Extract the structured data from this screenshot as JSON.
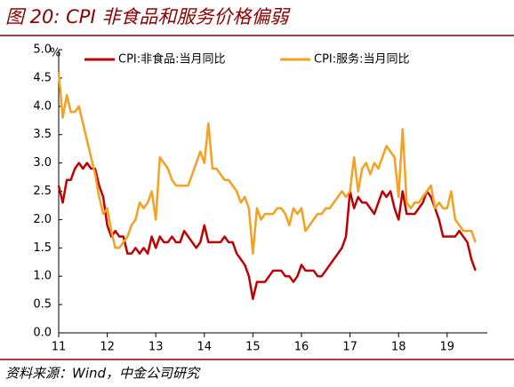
{
  "chart_data": {
    "type": "line",
    "title": "图 20: CPI 非食品和服务价格偏弱",
    "source": "资料来源：Wind，中金公司研究",
    "y_unit": "%",
    "categories": [
      "11",
      null,
      null,
      null,
      null,
      null,
      null,
      null,
      null,
      null,
      null,
      null,
      "12",
      null,
      null,
      null,
      null,
      null,
      null,
      null,
      null,
      null,
      null,
      null,
      "13",
      null,
      null,
      null,
      null,
      null,
      null,
      null,
      null,
      null,
      null,
      null,
      "14",
      null,
      null,
      null,
      null,
      null,
      null,
      null,
      null,
      null,
      null,
      null,
      "15",
      null,
      null,
      null,
      null,
      null,
      null,
      null,
      null,
      null,
      null,
      null,
      "16",
      null,
      null,
      null,
      null,
      null,
      null,
      null,
      null,
      null,
      null,
      null,
      "17",
      null,
      null,
      null,
      null,
      null,
      null,
      null,
      null,
      null,
      null,
      null,
      "18",
      null,
      null,
      null,
      null,
      null,
      null,
      null,
      null,
      null,
      null,
      null,
      "19",
      null,
      null,
      null,
      null,
      null,
      null,
      null
    ],
    "series": [
      {
        "name": "CPI:非食品:当月同比",
        "color": "#c00000",
        "values": [
          2.6,
          2.3,
          2.7,
          2.7,
          2.9,
          3.0,
          2.9,
          3.0,
          2.9,
          2.9,
          2.6,
          2.4,
          1.9,
          1.7,
          1.8,
          1.7,
          1.7,
          1.4,
          1.4,
          1.5,
          1.4,
          1.5,
          1.4,
          1.7,
          1.5,
          1.7,
          1.6,
          1.6,
          1.7,
          1.6,
          1.6,
          1.8,
          1.7,
          1.6,
          1.5,
          1.6,
          1.9,
          1.6,
          1.6,
          1.6,
          1.6,
          1.7,
          1.6,
          1.6,
          1.4,
          1.3,
          1.2,
          1.0,
          0.6,
          0.9,
          0.9,
          0.9,
          1.0,
          1.1,
          1.1,
          1.1,
          1.0,
          1.0,
          0.9,
          1.0,
          1.2,
          1.1,
          1.1,
          1.1,
          1.0,
          1.0,
          1.1,
          1.2,
          1.3,
          1.4,
          1.5,
          1.7,
          2.5,
          2.2,
          2.4,
          2.3,
          2.3,
          2.2,
          2.1,
          2.3,
          2.5,
          2.4,
          2.5,
          2.2,
          2.0,
          2.5,
          2.1,
          2.1,
          2.1,
          2.2,
          2.3,
          2.5,
          2.4,
          2.2,
          2.0,
          1.7,
          1.7,
          1.7,
          1.7,
          1.8,
          1.7,
          1.6,
          1.3,
          1.1
        ]
      },
      {
        "name": "CPI:服务:当月同比",
        "color": "#f5a020",
        "values": [
          4.6,
          3.8,
          4.2,
          3.9,
          3.9,
          4.0,
          3.7,
          3.4,
          3.1,
          2.8,
          2.4,
          2.1,
          2.2,
          1.8,
          1.5,
          1.5,
          1.6,
          1.7,
          1.9,
          2.0,
          2.3,
          2.2,
          2.3,
          2.5,
          2.0,
          3.1,
          3.0,
          2.9,
          2.7,
          2.6,
          2.6,
          2.6,
          2.6,
          2.8,
          3.0,
          3.2,
          3.0,
          3.7,
          2.9,
          2.9,
          2.8,
          2.7,
          2.7,
          2.6,
          2.5,
          2.3,
          2.4,
          2.2,
          1.4,
          2.2,
          2.0,
          2.1,
          2.1,
          2.1,
          2.2,
          2.2,
          2.1,
          1.9,
          2.2,
          2.1,
          2.2,
          1.8,
          1.9,
          2.0,
          2.1,
          2.1,
          2.2,
          2.2,
          2.3,
          2.4,
          2.5,
          2.4,
          2.5,
          3.1,
          2.5,
          2.9,
          3.0,
          2.8,
          3.0,
          2.9,
          3.1,
          3.3,
          3.2,
          3.1,
          2.4,
          3.6,
          2.3,
          2.2,
          2.3,
          2.3,
          2.4,
          2.5,
          2.6,
          2.2,
          2.3,
          2.2,
          2.2,
          2.5,
          2.0,
          1.9,
          1.8,
          1.8,
          1.8,
          1.6
        ]
      }
    ],
    "ylim": [
      0,
      5
    ],
    "yticks": [
      {
        "value": 0,
        "label": "0.0"
      },
      0.5,
      {
        "value": 1,
        "label": "1.0"
      },
      1.5,
      {
        "value": 2,
        "label": "2.0"
      },
      2.5,
      {
        "value": 3,
        "label": "3.0"
      },
      3.5,
      {
        "value": 4,
        "label": "4.0"
      },
      4.5,
      {
        "value": 5,
        "label": "5.0"
      }
    ],
    "grid": false,
    "legend": "top"
  }
}
